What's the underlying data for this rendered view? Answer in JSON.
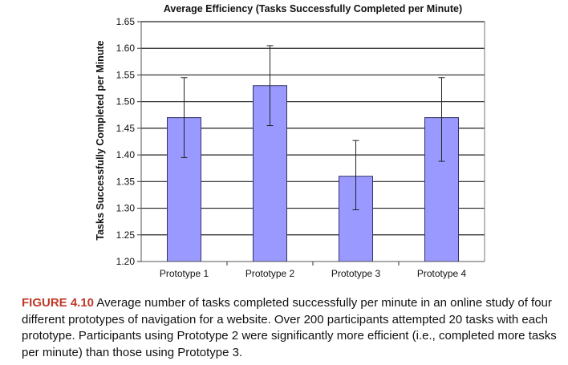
{
  "chart_data": {
    "type": "bar",
    "title": "Average Efficiency (Tasks Successfully Completed per Minute)",
    "xlabel": "",
    "ylabel": "Tasks Successfully Completed per Minute",
    "categories": [
      "Prototype 1",
      "Prototype 2",
      "Prototype 3",
      "Prototype 4"
    ],
    "values": [
      1.47,
      1.53,
      1.36,
      1.47
    ],
    "error_low": [
      1.395,
      1.455,
      1.297,
      1.388
    ],
    "error_high": [
      1.545,
      1.605,
      1.427,
      1.545
    ],
    "ylim": [
      1.2,
      1.65
    ],
    "yticks": [
      "1.20",
      "1.25",
      "1.30",
      "1.35",
      "1.40",
      "1.45",
      "1.50",
      "1.55",
      "1.60",
      "1.65"
    ],
    "grid": true,
    "legend": "none",
    "colors": {
      "bar_fill": "#9999ff",
      "bar_stroke": "#333366",
      "gridline": "#222222",
      "plot_background": "#ffffff"
    }
  },
  "caption": {
    "label": "FIGURE 4.10",
    "text": " Average number of tasks completed successfully per minute in an online study of four different prototypes of navigation for a website. Over 200 participants attempted 20 tasks with each prototype. Participants using Prototype 2 were significantly more efficient (i.e., completed more tasks per minute) than those using Prototype 3.",
    "label_color": "#c0392b"
  }
}
